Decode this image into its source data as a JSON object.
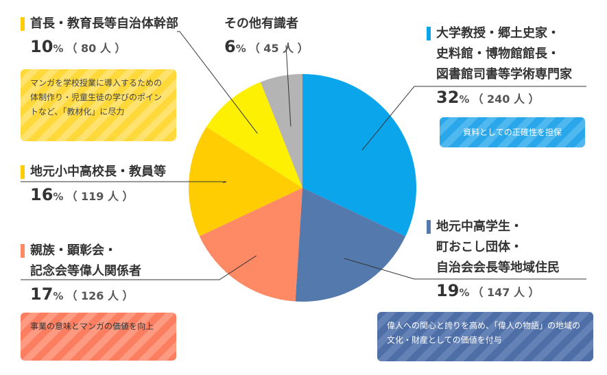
{
  "chart_data": {
    "type": "pie",
    "unit": "%",
    "slices": [
      {
        "label": "大学教授・郷土史家・史料館・博物館館長・図書館司書等学術専門家",
        "lines": [
          "大学教授・郷土史家・",
          "史料館・博物館館長・",
          "図書館司書等学術専門家"
        ],
        "value": 32,
        "count": "240 人",
        "color": "#0ba5ec",
        "bar_color": "#0ba5ec",
        "note": "資料としての正確性を担保"
      },
      {
        "label": "地元中高学生・町おこし団体・自治会会長等地域住民",
        "lines": [
          "地元中高学生・",
          "町おこし団体・",
          "自治会会長等地域住民"
        ],
        "value": 19,
        "count": "147 人",
        "color": "#5479ad",
        "bar_color": "#5479ad",
        "note": "偉人への関心と誇りを高め、「偉人の物語」の地域の文化・財産としての価値を付与"
      },
      {
        "label": "親族・顕彰会・記念会等偉人関係者",
        "lines": [
          "親族・顕彰会・",
          "記念会等偉人関係者"
        ],
        "value": 17,
        "count": "126 人",
        "color": "#fd8965",
        "bar_color": "#fd8965",
        "note": "事業の意味とマンガの価値を向上"
      },
      {
        "label": "地元小中高校長・教員等",
        "lines": [
          "地元小中高校長・教員等"
        ],
        "value": 16,
        "count": "119 人",
        "color": "#ffcd02",
        "bar_color": "#ffcd02",
        "note": ""
      },
      {
        "label": "首長・教育長等自治体幹部",
        "lines": [
          "首長・教育長等自治体幹部"
        ],
        "value": 10,
        "count": "80 人",
        "color": "#fef002",
        "bar_color": "#ffcd02",
        "note": "マンガを学校授業に導入するための体制作り・児童生徒の学びのポイントなど、「教材化」に尽力"
      },
      {
        "label": "その他有識者",
        "lines": [
          "その他有識者"
        ],
        "value": 6,
        "count": "45 人",
        "color": "#b4b4b4",
        "bar_color": "",
        "note": ""
      }
    ]
  }
}
